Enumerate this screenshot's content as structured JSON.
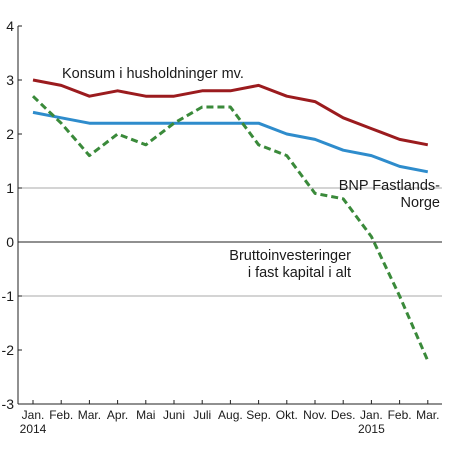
{
  "chart_data": {
    "type": "line",
    "categories": [
      "Jan.",
      "Feb.",
      "Mar.",
      "Apr.",
      "Mai",
      "Juni",
      "Juli",
      "Aug.",
      "Sep.",
      "Okt.",
      "Nov.",
      "Des.",
      "Jan.",
      "Feb.",
      "Mar."
    ],
    "year_labels": [
      {
        "index": 0,
        "label": "2014"
      },
      {
        "index": 12,
        "label": "2015"
      }
    ],
    "ylim": [
      -3,
      4
    ],
    "yticks": [
      -3,
      -2,
      -1,
      0,
      1,
      2,
      3,
      4
    ],
    "grid": "horizontal at 1 and -1",
    "zero_line": true,
    "series": [
      {
        "name": "Konsum i husholdninger mv.",
        "label_lines": [
          "Konsum i husholdninger mv."
        ],
        "color": "#9b1b1e",
        "style": "solid",
        "values": [
          3.0,
          2.9,
          2.7,
          2.8,
          2.7,
          2.7,
          2.8,
          2.8,
          2.9,
          2.7,
          2.6,
          2.3,
          2.1,
          1.9,
          1.8
        ]
      },
      {
        "name": "BNP Fastlands-Norge",
        "label_lines": [
          "BNP Fastlands-",
          "Norge"
        ],
        "color": "#2e8ccc",
        "style": "solid",
        "values": [
          2.4,
          2.3,
          2.2,
          2.2,
          2.2,
          2.2,
          2.2,
          2.2,
          2.2,
          2.0,
          1.9,
          1.7,
          1.6,
          1.4,
          1.3
        ]
      },
      {
        "name": "Bruttoinvesteringer i fast kapital i alt",
        "label_lines": [
          "Bruttoinvesteringer",
          "i fast kapital i alt"
        ],
        "color": "#3a8a3a",
        "style": "dashed",
        "values": [
          2.7,
          2.2,
          1.6,
          2.0,
          1.8,
          2.2,
          2.5,
          2.5,
          1.8,
          1.6,
          0.9,
          0.8,
          0.1,
          -1.0,
          -2.2
        ]
      }
    ]
  }
}
